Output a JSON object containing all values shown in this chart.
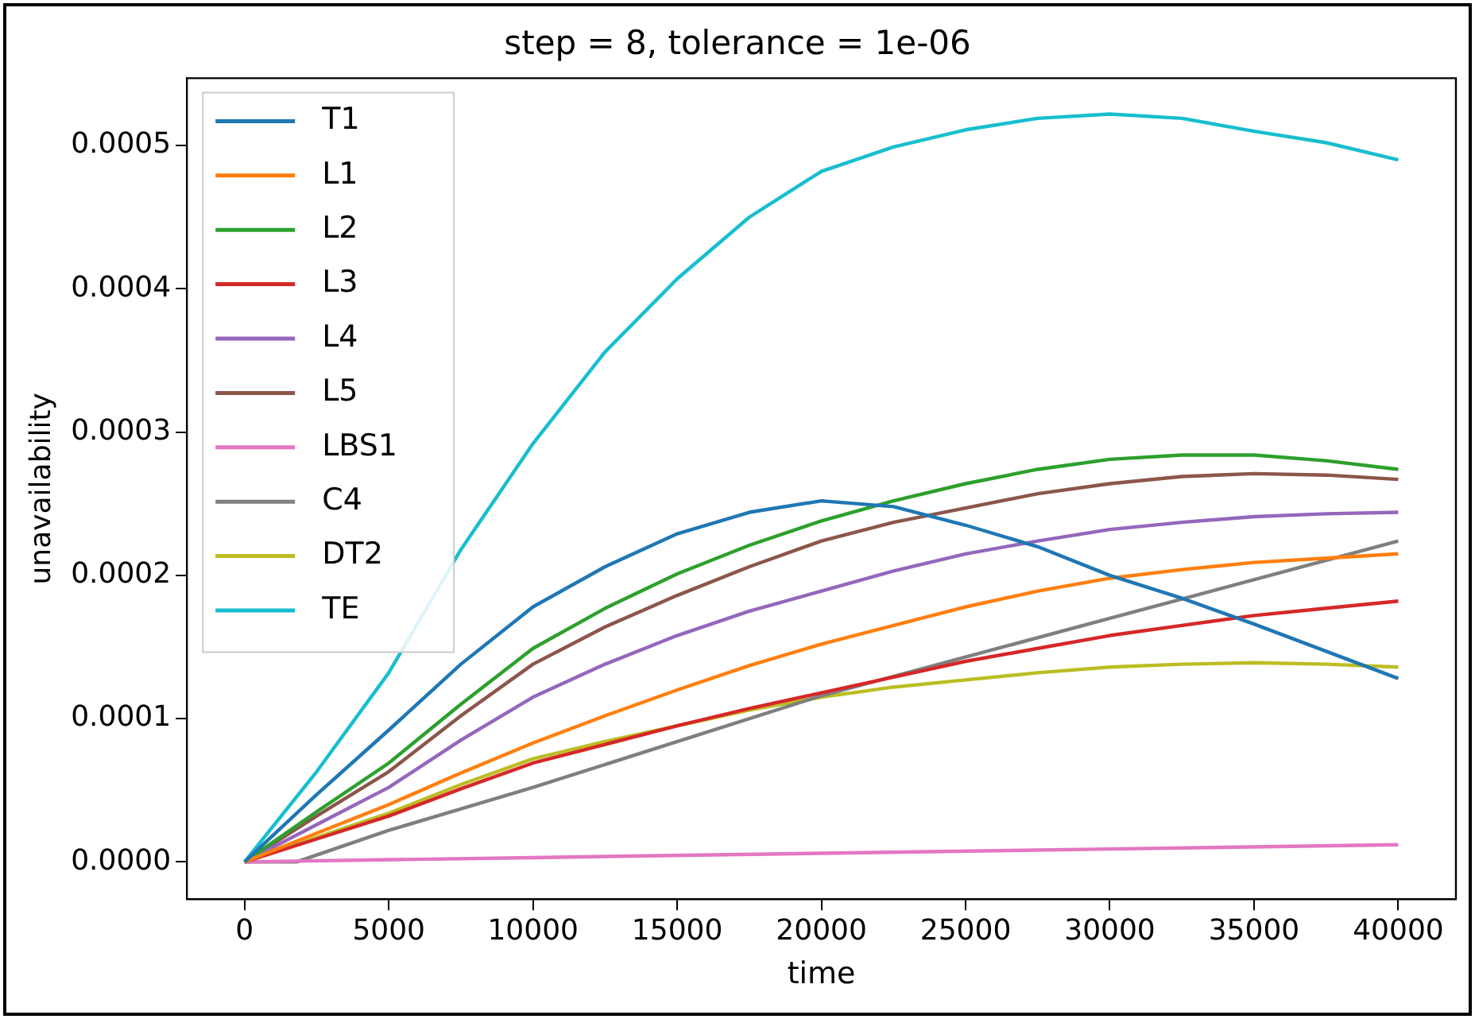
{
  "chart_data": {
    "type": "line",
    "title": "step = 8, tolerance = 1e-06",
    "xlabel": "time",
    "ylabel": "unavailability",
    "x": [
      0,
      2500,
      5000,
      7500,
      10000,
      12500,
      15000,
      17500,
      20000,
      22500,
      25000,
      27500,
      30000,
      32500,
      35000,
      37500,
      40000
    ],
    "series": [
      {
        "name": "T1",
        "color": "#1f77b4",
        "values": [
          0,
          4.7e-05,
          9.2e-05,
          0.000138,
          0.000178,
          0.000206,
          0.000229,
          0.000244,
          0.000252,
          0.000248,
          0.000235,
          0.00022,
          0.0002,
          0.000184,
          0.000166,
          0.000147,
          0.000128
        ]
      },
      {
        "name": "L1",
        "color": "#ff7f0e",
        "values": [
          0,
          2e-05,
          4e-05,
          6.2e-05,
          8.3e-05,
          0.000102,
          0.00012,
          0.000137,
          0.000152,
          0.000165,
          0.000178,
          0.000189,
          0.000198,
          0.000204,
          0.000209,
          0.000212,
          0.000215
        ]
      },
      {
        "name": "L2",
        "color": "#2ca02c",
        "values": [
          0,
          3.5e-05,
          6.9e-05,
          0.00011,
          0.000149,
          0.000177,
          0.000201,
          0.000221,
          0.000238,
          0.000252,
          0.000264,
          0.000274,
          0.000281,
          0.000284,
          0.000284,
          0.00028,
          0.000274
        ]
      },
      {
        "name": "L3",
        "color": "#d62728",
        "values": [
          0,
          1.6e-05,
          3.2e-05,
          5.1e-05,
          6.9e-05,
          8.2e-05,
          9.5e-05,
          0.000107,
          0.000118,
          0.000129,
          0.00014,
          0.000149,
          0.000158,
          0.000165,
          0.000172,
          0.000177,
          0.000182
        ]
      },
      {
        "name": "L4",
        "color": "#9467bd",
        "values": [
          0,
          2.6e-05,
          5.2e-05,
          8.5e-05,
          0.000115,
          0.000138,
          0.000158,
          0.000175,
          0.000189,
          0.000203,
          0.000215,
          0.000224,
          0.000232,
          0.000237,
          0.000241,
          0.000243,
          0.000244
        ]
      },
      {
        "name": "L5",
        "color": "#8c564b",
        "values": [
          0,
          3.2e-05,
          6.3e-05,
          0.000102,
          0.000138,
          0.000164,
          0.000186,
          0.000206,
          0.000224,
          0.000237,
          0.000247,
          0.000257,
          0.000264,
          0.000269,
          0.000271,
          0.00027,
          0.000267
        ]
      },
      {
        "name": "LBS1",
        "color": "#e377c2",
        "x": [
          0,
          10000,
          20000,
          30000,
          40000
        ],
        "values": [
          0,
          3e-06,
          6e-06,
          9e-06,
          1.2e-05
        ]
      },
      {
        "name": "C4",
        "color": "#7f7f7f",
        "x": [
          0,
          1800,
          5000,
          10000,
          20000,
          30000,
          40000
        ],
        "values": [
          0,
          0,
          2.2e-05,
          5.2e-05,
          0.000116,
          0.00017,
          0.000224
        ]
      },
      {
        "name": "DT2",
        "color": "#bcbd22",
        "values": [
          0,
          1.7e-05,
          3.4e-05,
          5.4e-05,
          7.2e-05,
          8.4e-05,
          9.5e-05,
          0.000106,
          0.000115,
          0.000122,
          0.000127,
          0.000132,
          0.000136,
          0.000138,
          0.000139,
          0.000138,
          0.000136
        ]
      },
      {
        "name": "TE",
        "color": "#17becf",
        "values": [
          0,
          6.3e-05,
          0.000132,
          0.000218,
          0.000292,
          0.000356,
          0.000407,
          0.00045,
          0.000482,
          0.000499,
          0.000511,
          0.000519,
          0.000522,
          0.000519,
          0.00051,
          0.000502,
          0.00049
        ]
      }
    ],
    "xlim": [
      -2000,
      42000
    ],
    "xticks": [
      0,
      5000,
      10000,
      15000,
      20000,
      25000,
      30000,
      35000,
      40000
    ],
    "ylim": [
      -2.6e-05,
      0.000547
    ],
    "yticks": [
      {
        "value": 0,
        "label": "0.0000"
      },
      {
        "value": 0.0001,
        "label": "0.0001"
      },
      {
        "value": 0.0002,
        "label": "0.0002"
      },
      {
        "value": 0.0003,
        "label": "0.0003"
      },
      {
        "value": 0.0004,
        "label": "0.0004"
      },
      {
        "value": 0.0005,
        "label": "0.0005"
      }
    ],
    "legend": "top left",
    "grid": false,
    "marker": "none",
    "line_style": "solid"
  }
}
